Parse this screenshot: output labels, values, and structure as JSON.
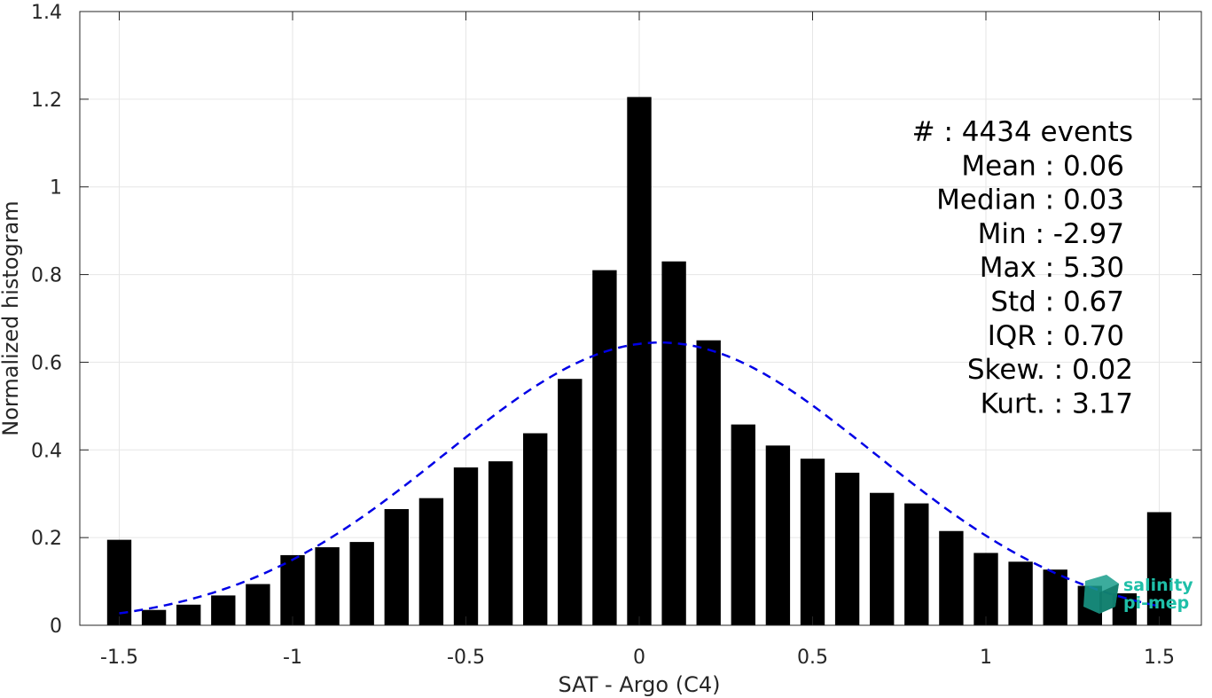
{
  "chart_data": {
    "type": "bar",
    "xlabel": "SAT - Argo (C4)",
    "ylabel": "Normalized histogram",
    "xlim": [
      -1.55,
      1.6
    ],
    "ylim": [
      0,
      1.4
    ],
    "grid": true,
    "x": [
      -1.5,
      -1.4,
      -1.3,
      -1.2,
      -1.1,
      -1.0,
      -0.9,
      -0.8,
      -0.7,
      -0.6,
      -0.5,
      -0.4,
      -0.3,
      -0.2,
      -0.1,
      0.0,
      0.1,
      0.2,
      0.3,
      0.4,
      0.5,
      0.6,
      0.7,
      0.8,
      0.9,
      1.0,
      1.1,
      1.2,
      1.3,
      1.4,
      1.5
    ],
    "values": [
      0.195,
      0.035,
      0.047,
      0.068,
      0.094,
      0.16,
      0.178,
      0.19,
      0.265,
      0.29,
      0.36,
      0.374,
      0.438,
      0.562,
      0.81,
      1.205,
      0.83,
      0.65,
      0.458,
      0.41,
      0.38,
      0.348,
      0.302,
      0.278,
      0.215,
      0.165,
      0.145,
      0.127,
      0.09,
      0.073,
      0.258
    ],
    "bar_color": "#000000",
    "fit": {
      "type": "normal",
      "mean": 0.06,
      "std": 0.62,
      "peak": 0.645,
      "color": "#0000e6",
      "style": "dashed"
    },
    "xticks": [
      "-1.5",
      "-1",
      "-0.5",
      "0",
      "0.5",
      "1",
      "1.5"
    ],
    "xtick_values": [
      -1.5,
      -1,
      -0.5,
      0,
      0.5,
      1,
      1.5
    ],
    "yticks": [
      "0",
      "0.2",
      "0.4",
      "0.6",
      "0.8",
      "1",
      "1.2",
      "1.4"
    ],
    "ytick_values": [
      0,
      0.2,
      0.4,
      0.6,
      0.8,
      1,
      1.2,
      1.4
    ],
    "stats": [
      "#  : 4434 events",
      "Mean : 0.06",
      "Median : 0.03",
      "Min : -2.97",
      "Max : 5.30",
      "Std : 0.67",
      "IQR : 0.70",
      "Skew. : 0.02",
      "Kurt. : 3.17"
    ]
  },
  "logo": {
    "line1": "salinity",
    "line2": "pi-mep"
  }
}
